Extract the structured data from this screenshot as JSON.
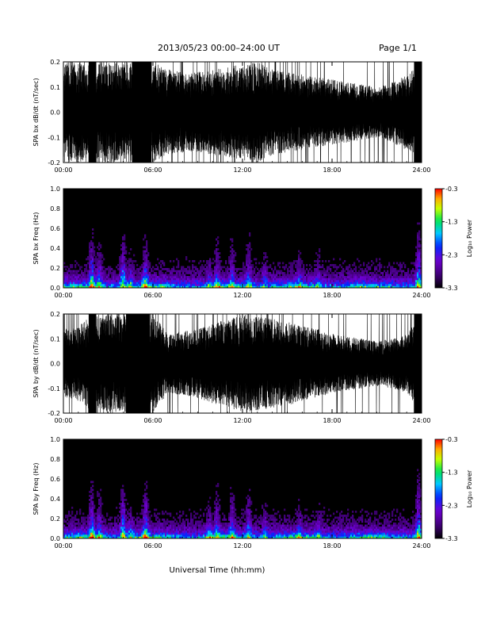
{
  "header": {
    "title": "2013/05/23  00:00–24:00 UT",
    "page": "Page 1/1"
  },
  "xlabel": "Universal Time (hh:mm)",
  "chart_data": [
    {
      "type": "line",
      "ylabel": "SPA bx dB/dt (nT/sec)",
      "xticks": [
        "00:00",
        "06:00",
        "12:00",
        "18:00",
        "24:00"
      ],
      "yticks": [
        "-0.2",
        "-0.1",
        "0.0",
        "0.1",
        "0.2"
      ],
      "xlim": [
        0,
        24
      ],
      "ylim": [
        -0.2,
        0.2
      ],
      "series": [
        {
          "x": [
            0,
            1,
            2,
            3,
            4,
            5,
            6,
            7,
            8,
            9,
            10,
            11,
            12,
            13,
            14,
            15,
            16,
            17,
            18,
            19,
            20,
            21,
            22,
            23,
            24
          ],
          "envelope_amplitude": [
            0.2,
            0.2,
            0.2,
            0.2,
            0.2,
            0.2,
            0.2,
            0.17,
            0.16,
            0.16,
            0.17,
            0.18,
            0.19,
            0.2,
            0.17,
            0.16,
            0.15,
            0.14,
            0.13,
            0.12,
            0.11,
            0.1,
            0.12,
            0.15,
            0.2
          ]
        }
      ],
      "saturated_intervals": [
        [
          1.7,
          2.2
        ],
        [
          4.6,
          5.9
        ],
        [
          23.5,
          24
        ]
      ]
    },
    {
      "type": "heatmap",
      "ylabel": "SPA bx Freq (Hz)",
      "xticks": [
        "00:00",
        "06:00",
        "12:00",
        "18:00",
        "24:00"
      ],
      "yticks": [
        "0.0",
        "0.2",
        "0.4",
        "0.6",
        "0.8",
        "1.0"
      ],
      "xlim": [
        0,
        24
      ],
      "ylim": [
        0,
        1.0
      ],
      "colorbar": {
        "label": "Log₁₀ Power",
        "ticks": [
          "-0.3",
          "-1.3",
          "-2.3",
          "-3.3"
        ],
        "range": [
          -3.3,
          -0.3
        ]
      },
      "bursts": [
        {
          "t": 1.9,
          "fmax": 0.85,
          "strength": 1.0
        },
        {
          "t": 2.4,
          "fmax": 0.75,
          "strength": 0.7
        },
        {
          "t": 4.0,
          "fmax": 0.85,
          "strength": 1.0
        },
        {
          "t": 4.5,
          "fmax": 0.55,
          "strength": 0.6
        },
        {
          "t": 5.5,
          "fmax": 0.8,
          "strength": 0.9
        },
        {
          "t": 9.8,
          "fmax": 0.55,
          "strength": 0.5
        },
        {
          "t": 10.3,
          "fmax": 0.9,
          "strength": 0.6
        },
        {
          "t": 11.3,
          "fmax": 0.9,
          "strength": 0.6
        },
        {
          "t": 12.4,
          "fmax": 0.95,
          "strength": 0.6
        },
        {
          "t": 13.5,
          "fmax": 0.6,
          "strength": 0.45
        },
        {
          "t": 15.8,
          "fmax": 0.6,
          "strength": 0.45
        },
        {
          "t": 17.1,
          "fmax": 0.55,
          "strength": 0.4
        },
        {
          "t": 23.8,
          "fmax": 1.0,
          "strength": 1.0
        }
      ]
    },
    {
      "type": "line",
      "ylabel": "SPA by dB/dt (nT/sec)",
      "xticks": [
        "00:00",
        "06:00",
        "12:00",
        "18:00",
        "24:00"
      ],
      "yticks": [
        "-0.2",
        "-0.1",
        "0.0",
        "0.1",
        "0.2"
      ],
      "xlim": [
        0,
        24
      ],
      "ylim": [
        -0.2,
        0.2
      ],
      "series": [
        {
          "x": [
            0,
            1,
            2,
            3,
            4,
            5,
            6,
            7,
            8,
            9,
            10,
            11,
            12,
            13,
            14,
            15,
            16,
            17,
            18,
            19,
            20,
            21,
            22,
            23,
            24
          ],
          "envelope_amplitude": [
            0.14,
            0.15,
            0.2,
            0.2,
            0.2,
            0.2,
            0.2,
            0.12,
            0.13,
            0.14,
            0.16,
            0.18,
            0.2,
            0.19,
            0.18,
            0.17,
            0.15,
            0.14,
            0.12,
            0.11,
            0.1,
            0.09,
            0.1,
            0.12,
            0.2
          ]
        }
      ],
      "saturated_intervals": [
        [
          1.7,
          2.2
        ],
        [
          4.2,
          5.8
        ],
        [
          23.5,
          24
        ]
      ]
    },
    {
      "type": "heatmap",
      "ylabel": "SPA by Freq (Hz)",
      "xticks": [
        "00:00",
        "06:00",
        "12:00",
        "18:00",
        "24:00"
      ],
      "yticks": [
        "0.0",
        "0.2",
        "0.4",
        "0.6",
        "0.8",
        "1.0"
      ],
      "xlim": [
        0,
        24
      ],
      "ylim": [
        0,
        1.0
      ],
      "colorbar": {
        "label": "Log₁₀ Power",
        "ticks": [
          "-0.3",
          "-1.3",
          "-2.3",
          "-3.3"
        ],
        "range": [
          -3.3,
          -0.3
        ]
      },
      "bursts": [
        {
          "t": 1.9,
          "fmax": 0.85,
          "strength": 1.0
        },
        {
          "t": 2.4,
          "fmax": 0.75,
          "strength": 0.7
        },
        {
          "t": 4.0,
          "fmax": 0.85,
          "strength": 1.0
        },
        {
          "t": 4.5,
          "fmax": 0.55,
          "strength": 0.6
        },
        {
          "t": 5.5,
          "fmax": 0.95,
          "strength": 0.9
        },
        {
          "t": 9.8,
          "fmax": 0.6,
          "strength": 0.5
        },
        {
          "t": 10.3,
          "fmax": 0.9,
          "strength": 0.6
        },
        {
          "t": 11.3,
          "fmax": 0.95,
          "strength": 0.6
        },
        {
          "t": 12.4,
          "fmax": 0.95,
          "strength": 0.6
        },
        {
          "t": 13.5,
          "fmax": 0.65,
          "strength": 0.45
        },
        {
          "t": 15.8,
          "fmax": 0.6,
          "strength": 0.45
        },
        {
          "t": 17.1,
          "fmax": 0.55,
          "strength": 0.4
        },
        {
          "t": 23.8,
          "fmax": 1.0,
          "strength": 1.0
        }
      ]
    }
  ]
}
